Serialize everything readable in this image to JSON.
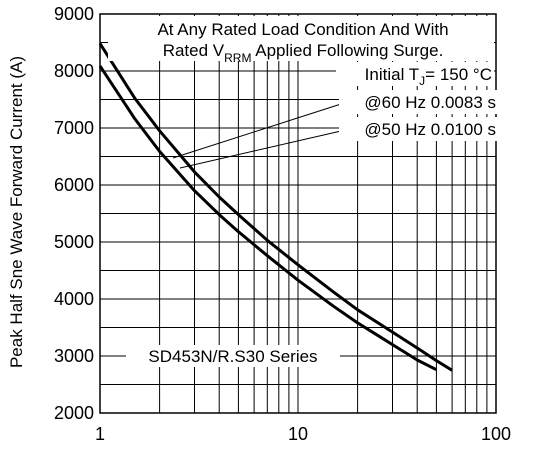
{
  "chart_data": {
    "type": "line",
    "xlabel": "",
    "ylabel": "Peak Half Sne Wave Forward Current (A)",
    "x_scale": "log",
    "xlim": [
      1,
      100
    ],
    "ylim": [
      2000,
      9000
    ],
    "x_ticks": [
      "1",
      "10",
      "100"
    ],
    "y_ticks": [
      "2000",
      "3000",
      "4000",
      "5000",
      "6000",
      "7000",
      "8000",
      "9000"
    ],
    "grid": true,
    "annotations": {
      "condition_line1": "At Any Rated Load Condition And With",
      "condition_line2_pre": "Rated V",
      "condition_line2_sub": "RRM",
      "condition_line2_post": " Applied Following Surge.",
      "initial_pre": "Initial T",
      "initial_sub": "J",
      "initial_post": "= 150 °C",
      "series_60": "@60 Hz 0.0083 s",
      "series_50": "@50 Hz 0.0100 s",
      "device": "SD453N/R.S30 Series"
    },
    "series": [
      {
        "name": "@60 Hz 0.0083 s",
        "x": [
          1,
          1.5,
          2,
          3,
          4,
          5,
          7,
          10,
          15,
          20,
          30,
          40,
          50,
          60
        ],
        "values": [
          8480,
          7520,
          6950,
          6230,
          5790,
          5480,
          5030,
          4600,
          4130,
          3810,
          3420,
          3140,
          2920,
          2750
        ]
      },
      {
        "name": "@50 Hz 0.0100 s",
        "x": [
          1,
          1.5,
          2,
          3,
          4,
          5,
          7,
          10,
          15,
          20,
          30,
          40,
          50
        ],
        "values": [
          8090,
          7160,
          6590,
          5900,
          5480,
          5180,
          4760,
          4330,
          3880,
          3580,
          3200,
          2930,
          2760
        ]
      }
    ]
  }
}
